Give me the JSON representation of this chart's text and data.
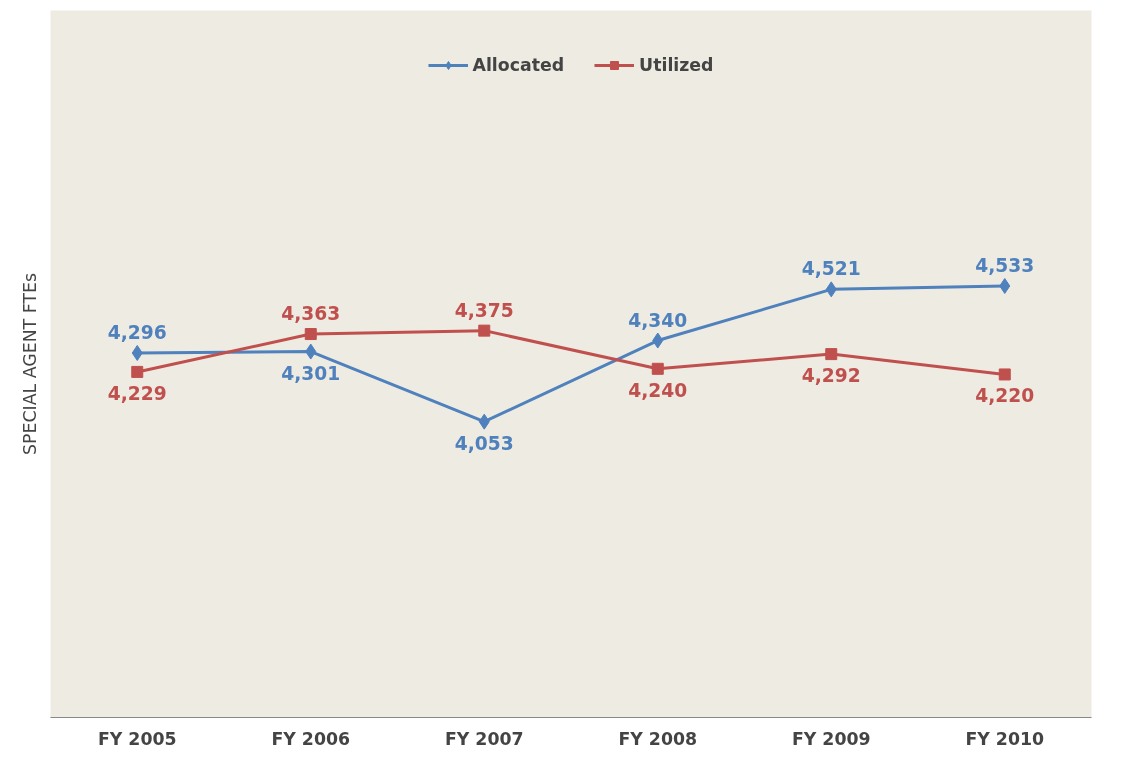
{
  "chart_data": {
    "type": "line",
    "ylabel": "SPECIAL AGENT FTEs",
    "categories": [
      "FY 2005",
      "FY 2006",
      "FY 2007",
      "FY 2008",
      "FY 2009",
      "FY 2010"
    ],
    "series": [
      {
        "name": "Allocated",
        "color": "#4f81bd",
        "marker": "diamond",
        "values": [
          4296,
          4301,
          4053,
          4340,
          4521,
          4533
        ],
        "value_labels": [
          "4,296",
          "4,301",
          "4,053",
          "4,340",
          "4,521",
          "4,533"
        ]
      },
      {
        "name": "Utilized",
        "color": "#c0504d",
        "marker": "square",
        "values": [
          4229,
          4363,
          4375,
          4240,
          4292,
          4220
        ],
        "value_labels": [
          "4,229",
          "4,363",
          "4,375",
          "4,240",
          "4,292",
          "4,220"
        ]
      }
    ],
    "legend": "top"
  }
}
